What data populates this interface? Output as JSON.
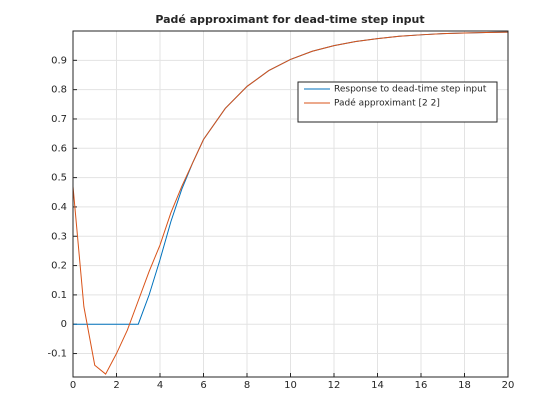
{
  "chart_data": {
    "type": "line",
    "title": "Padé approximant for dead-time step input",
    "x": [
      0,
      0.5,
      1,
      1.5,
      2,
      2.5,
      3,
      3.5,
      4,
      4.5,
      5,
      5.5,
      6,
      7,
      8,
      9,
      10,
      11,
      12,
      13,
      14,
      15,
      16,
      17,
      18,
      19,
      20
    ],
    "series": [
      {
        "name": "Response to dead-time step input",
        "color": "#0072bd",
        "values": [
          0,
          0,
          0,
          0,
          0,
          0,
          0,
          0.1,
          0.22,
          0.35,
          0.46,
          0.55,
          0.63,
          0.736,
          0.811,
          0.865,
          0.903,
          0.931,
          0.95,
          0.964,
          0.974,
          0.982,
          0.987,
          0.991,
          0.993,
          0.995,
          0.996
        ]
      },
      {
        "name": "Padé approximant [2 2]",
        "color": "#d95319",
        "values": [
          0.47,
          0.06,
          -0.14,
          -0.17,
          -0.1,
          -0.02,
          0.08,
          0.18,
          0.27,
          0.38,
          0.47,
          0.55,
          0.63,
          0.736,
          0.811,
          0.865,
          0.903,
          0.931,
          0.95,
          0.964,
          0.974,
          0.982,
          0.987,
          0.991,
          0.993,
          0.995,
          0.996
        ]
      }
    ],
    "xlim": [
      0,
      20
    ],
    "ylim": [
      -0.18,
      1
    ],
    "xticks": [
      0,
      2,
      4,
      6,
      8,
      10,
      12,
      14,
      16,
      18,
      20
    ],
    "yticks": [
      -0.1,
      0,
      0.1,
      0.2,
      0.3,
      0.4,
      0.5,
      0.6,
      0.7,
      0.8,
      0.9
    ],
    "grid": true,
    "legend": "northeast"
  }
}
